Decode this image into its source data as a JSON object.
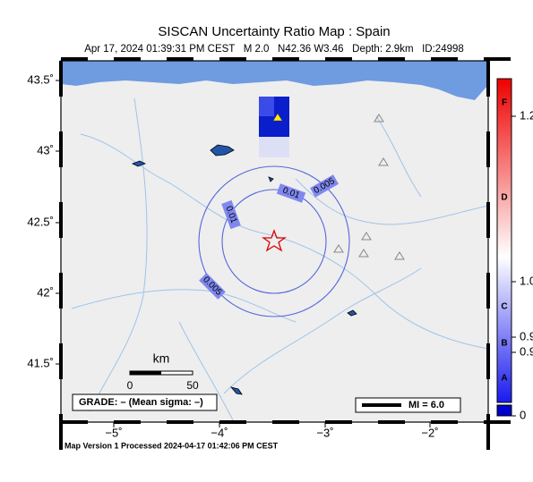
{
  "header": {
    "title": "SISCAN Uncertainty Ratio Map : Spain",
    "subtitle": "Apr 17, 2024 01:39:31 PM CEST   M 2.0   N42.36 W3.46   Depth: 2.9km   ID:24998"
  },
  "axes": {
    "lat_labels": [
      "43.5˚",
      "43˚",
      "42.5˚",
      "42˚",
      "41.5˚"
    ],
    "lon_labels": [
      "−5˚",
      "−4˚",
      "−3˚",
      "−2˚"
    ]
  },
  "contour_labels": [
    "0.005",
    "0.01",
    "0.01",
    "0.005"
  ],
  "scale": {
    "unit": "km",
    "start": "0",
    "end": "50"
  },
  "grade": "GRADE: – (Mean sigma: –)",
  "intensity": "MI = 6.0",
  "colorbar": {
    "letters": [
      "F",
      "D",
      "C",
      "B",
      "A"
    ],
    "values": [
      "1.2",
      "1.0",
      "0.9",
      "0.9",
      "0"
    ]
  },
  "footer": "Map Version 1 Processed 2024-04-17 01:42:06 PM CEST"
}
